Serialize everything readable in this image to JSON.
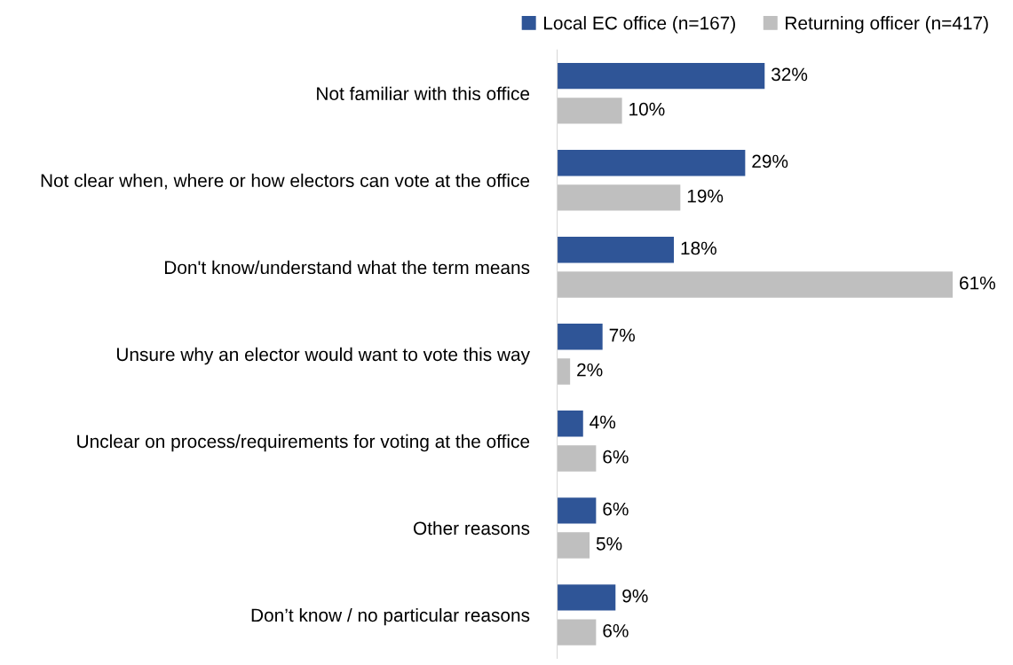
{
  "chart_data": {
    "type": "bar",
    "orientation": "horizontal",
    "categories": [
      "Not familiar with this office",
      "Not clear when, where or how electors can vote at the office",
      "Don't know/understand what the term means",
      "Unsure why an elector would want to vote this way",
      "Unclear on process/requirements for voting at the office",
      "Other reasons",
      "Don’t know / no particular reasons"
    ],
    "series": [
      {
        "name": "Local EC office (n=167)",
        "color": "#2f5597",
        "values": [
          32,
          29,
          18,
          7,
          4,
          6,
          9
        ],
        "value_labels": [
          "32%",
          "29%",
          "18%",
          "7%",
          "4%",
          "6%",
          "9%"
        ]
      },
      {
        "name": "Returning officer (n=417)",
        "color": "#bfbfbf",
        "values": [
          10,
          19,
          61,
          2,
          6,
          5,
          6
        ],
        "value_labels": [
          "10%",
          "19%",
          "61%",
          "2%",
          "6%",
          "5%",
          "6%"
        ]
      }
    ],
    "tick_labels": "y",
    "grid": false,
    "legend": "top right"
  }
}
